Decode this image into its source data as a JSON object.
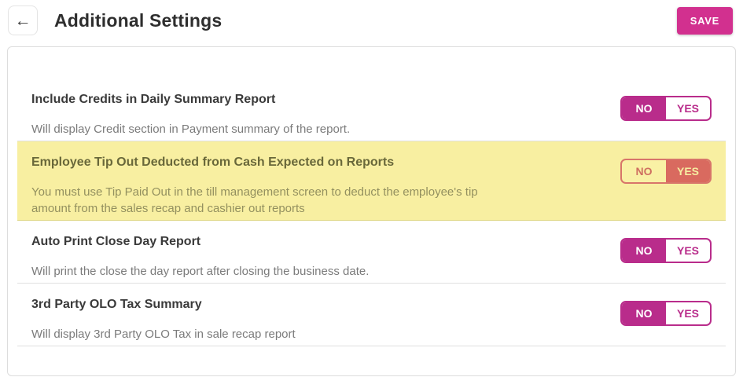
{
  "header": {
    "title": "Additional Settings",
    "back_icon": "←",
    "save_label": "SAVE"
  },
  "toggle": {
    "no_label": "NO",
    "yes_label": "YES"
  },
  "settings": [
    {
      "title": "Include Credits in Daily Summary Report",
      "description": "Will display Credit section in Payment summary of the report.",
      "value": "NO",
      "highlighted": false
    },
    {
      "title": "Employee Tip Out Deducted from Cash Expected on Reports",
      "description": "You must use Tip Paid Out in the till management screen to deduct the employee's tip amount from the sales recap and cashier out reports",
      "value": "YES",
      "highlighted": true
    },
    {
      "title": "Auto Print Close Day Report",
      "description": "Will print the close the day report after closing the business date.",
      "value": "NO",
      "highlighted": false
    },
    {
      "title": "3rd Party OLO Tax Summary",
      "description": "Will display 3rd Party OLO Tax in sale recap report",
      "value": "NO",
      "highlighted": false
    }
  ],
  "colors": {
    "accent_magenta": "#b92c8b",
    "save_button_pink": "#d2308f",
    "highlight_yellow": "#f8efa1",
    "highlight_salmon": "#d96a5f"
  }
}
